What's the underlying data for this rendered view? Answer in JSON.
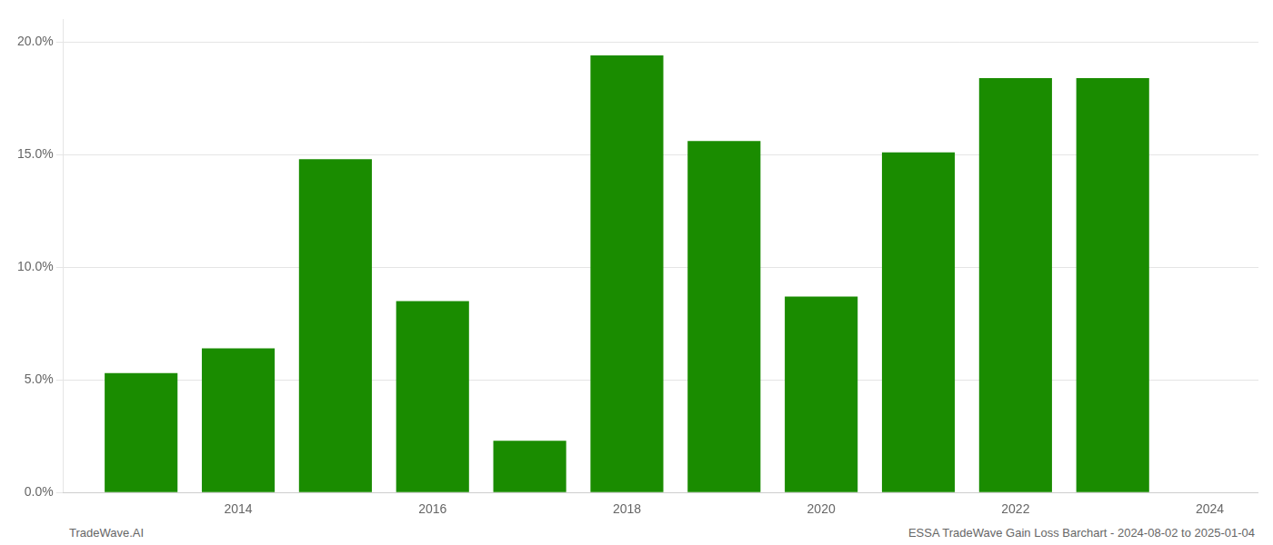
{
  "chart_data": {
    "type": "bar",
    "x": [
      2013,
      2014,
      2015,
      2016,
      2017,
      2018,
      2019,
      2020,
      2021,
      2022,
      2023
    ],
    "values": [
      0.053,
      0.064,
      0.148,
      0.085,
      0.023,
      0.194,
      0.156,
      0.087,
      0.151,
      0.184,
      0.184
    ],
    "color": "#1a8c00",
    "xlim": [
      2012.2,
      2024.5
    ],
    "xticks": [
      2014,
      2016,
      2018,
      2020,
      2022,
      2024
    ],
    "ylim": [
      0,
      0.21
    ],
    "yticks": [
      {
        "value": 0.0,
        "label": "0.0%"
      },
      {
        "value": 0.05,
        "label": "5.0%"
      },
      {
        "value": 0.1,
        "label": "10.0%"
      },
      {
        "value": 0.15,
        "label": "15.0%"
      },
      {
        "value": 0.2,
        "label": "20.0%"
      }
    ],
    "grid": "y",
    "annotations": [
      "TradeWave.AI",
      "ESSA TradeWave Gain Loss Barchart - 2024-08-02 to 2025-01-04"
    ]
  }
}
